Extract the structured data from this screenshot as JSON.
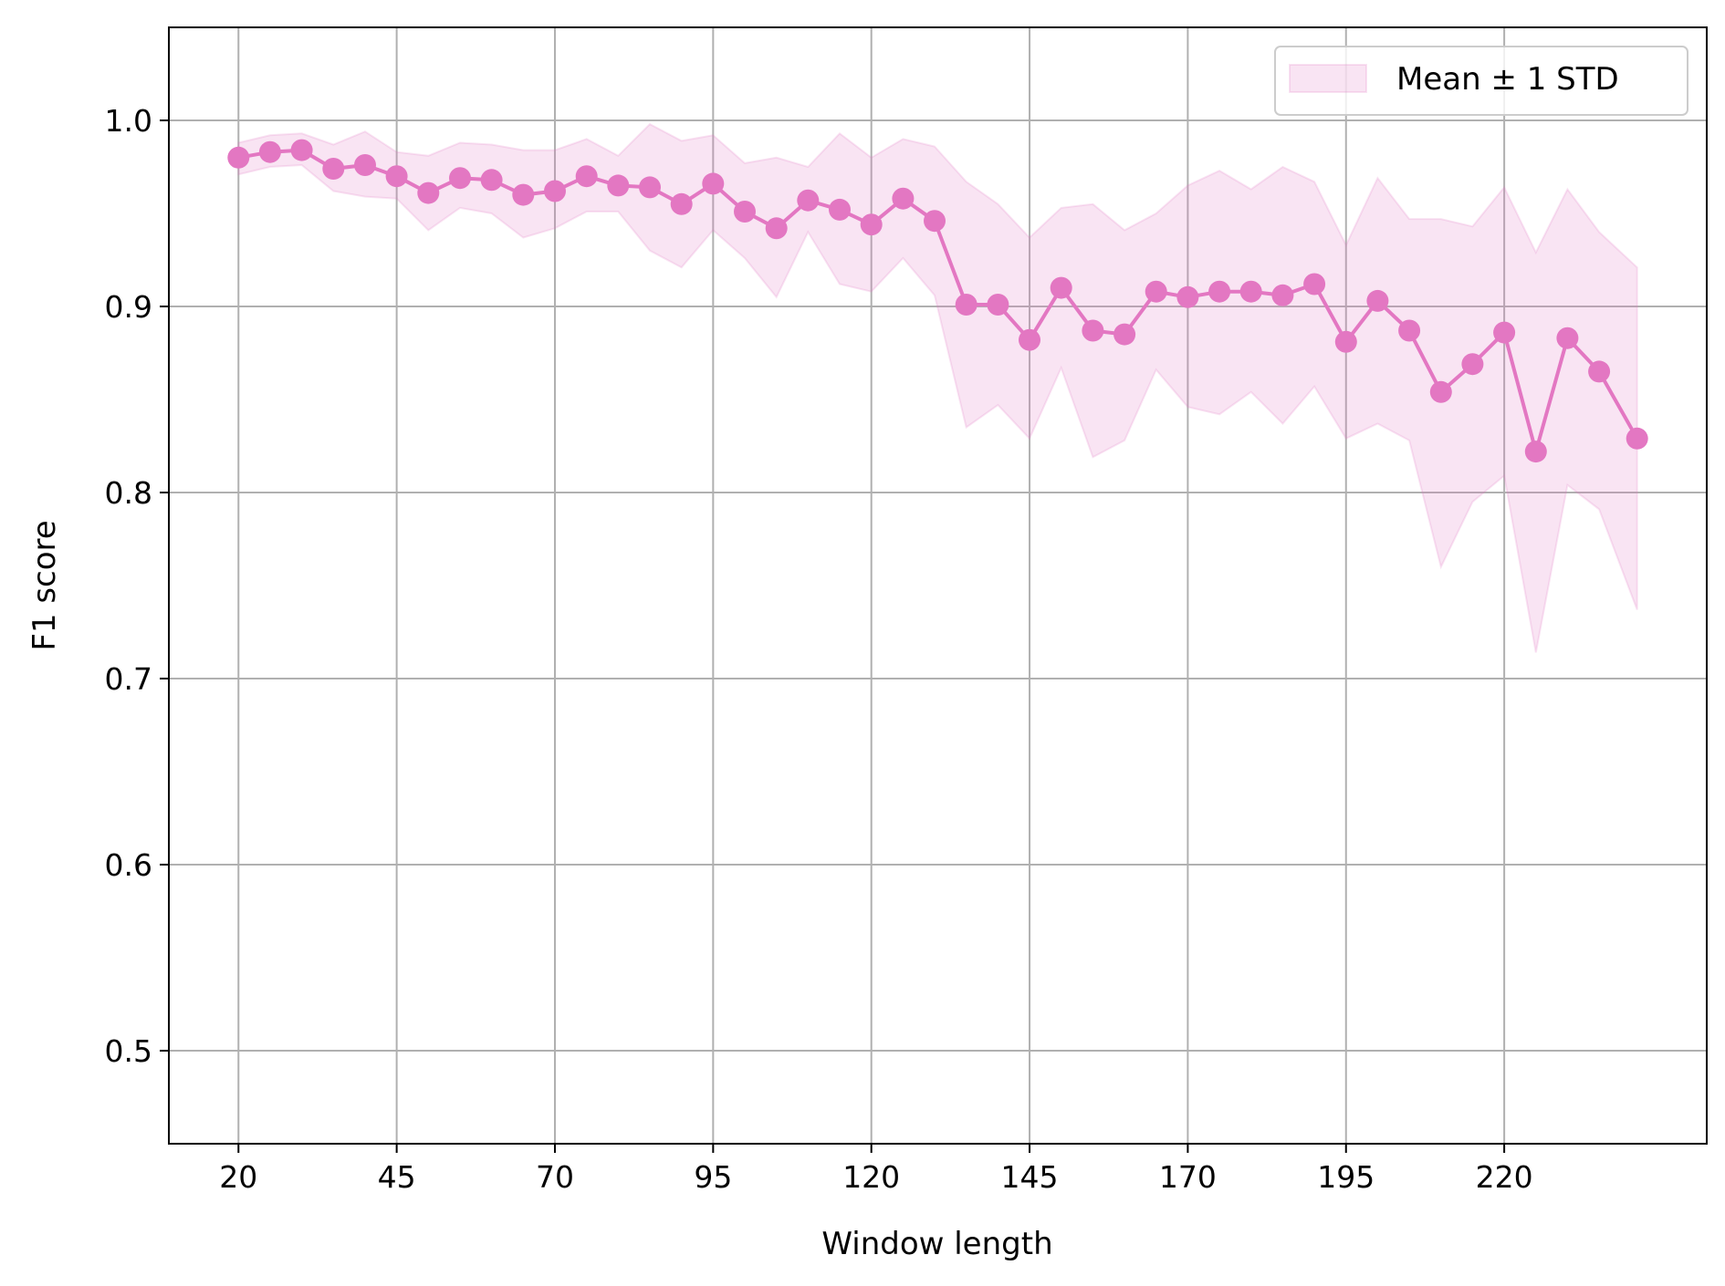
{
  "chart_data": {
    "type": "line",
    "title": "",
    "xlabel": "Window length",
    "ylabel": "F1 score",
    "xlim": [
      9,
      252
    ],
    "ylim": [
      0.45,
      1.05
    ],
    "xticks": [
      20,
      45,
      70,
      95,
      120,
      145,
      170,
      195,
      220
    ],
    "xtick_labels": [
      "20",
      "45",
      "70",
      "95",
      "120",
      "145",
      "170",
      "195",
      "220"
    ],
    "yticks": [
      0.5,
      0.6,
      0.7,
      0.8,
      0.9,
      1.0
    ],
    "ytick_labels": [
      "0.5",
      "0.6",
      "0.7",
      "0.8",
      "0.9",
      "1.0"
    ],
    "grid": true,
    "legend": {
      "position": "top-right",
      "entries": [
        "Mean ± 1 STD"
      ]
    },
    "colors": {
      "line": "#e377c2",
      "band": "#e377c2",
      "grid": "#b0b0b0",
      "axes": "#000000"
    },
    "x": [
      20,
      25,
      30,
      35,
      40,
      45,
      50,
      55,
      60,
      65,
      70,
      75,
      80,
      85,
      90,
      95,
      100,
      105,
      110,
      115,
      120,
      125,
      130,
      135,
      140,
      145,
      150,
      155,
      160,
      165,
      170,
      175,
      180,
      185,
      190,
      195,
      200,
      205,
      210,
      215,
      220,
      225,
      230,
      235,
      241
    ],
    "series": [
      {
        "values": [
          0.98,
          0.983,
          0.984,
          0.974,
          0.976,
          0.97,
          0.961,
          0.969,
          0.968,
          0.96,
          0.962,
          0.97,
          0.965,
          0.964,
          0.955,
          0.966,
          0.951,
          0.942,
          0.957,
          0.952,
          0.944,
          0.958,
          0.946,
          0.901,
          0.901,
          0.882,
          0.91,
          0.887,
          0.885,
          0.908,
          0.905,
          0.908,
          0.908,
          0.906,
          0.912,
          0.881,
          0.903,
          0.887,
          0.854,
          0.869,
          0.886,
          0.822,
          0.883,
          0.865,
          0.829
        ]
      }
    ],
    "band": {
      "name": "Mean ± 1 STD",
      "upper": [
        0.988,
        0.992,
        0.993,
        0.987,
        0.994,
        0.983,
        0.981,
        0.988,
        0.987,
        0.984,
        0.984,
        0.99,
        0.981,
        0.998,
        0.989,
        0.992,
        0.977,
        0.98,
        0.975,
        0.993,
        0.98,
        0.99,
        0.986,
        0.967,
        0.955,
        0.937,
        0.953,
        0.955,
        0.941,
        0.95,
        0.965,
        0.973,
        0.963,
        0.975,
        0.967,
        0.933,
        0.969,
        0.947,
        0.947,
        0.943,
        0.964,
        0.929,
        0.963,
        0.94,
        0.921
      ],
      "lower": [
        0.971,
        0.975,
        0.976,
        0.962,
        0.959,
        0.958,
        0.941,
        0.953,
        0.95,
        0.937,
        0.942,
        0.951,
        0.951,
        0.93,
        0.921,
        0.941,
        0.926,
        0.905,
        0.94,
        0.912,
        0.908,
        0.926,
        0.906,
        0.835,
        0.847,
        0.829,
        0.867,
        0.819,
        0.828,
        0.866,
        0.846,
        0.842,
        0.854,
        0.837,
        0.857,
        0.829,
        0.837,
        0.828,
        0.76,
        0.795,
        0.809,
        0.714,
        0.804,
        0.791,
        0.737
      ]
    }
  }
}
